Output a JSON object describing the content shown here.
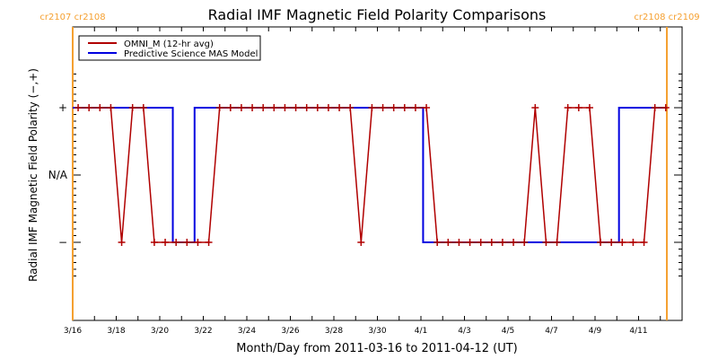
{
  "chart_data": {
    "type": "line",
    "title": "Radial IMF Magnetic Field Polarity Comparisons",
    "xlabel": "Month/Day from 2011-03-16 to 2011-04-12 (UT)",
    "ylabel": "Radial IMF Magnetic Field Polarity (−,+)",
    "x_unit": "days since 2011-03-16 00:00 UT",
    "xlim": [
      0,
      28
    ],
    "ylim": [
      -1.5,
      1.5
    ],
    "x_tick_values": [
      0,
      2,
      4,
      6,
      8,
      10,
      12,
      14,
      16,
      18,
      20,
      22,
      24,
      26
    ],
    "x_tick_labels": [
      "3/16",
      "3/18",
      "3/20",
      "3/22",
      "3/24",
      "3/26",
      "3/28",
      "3/30",
      "4/1",
      "4/3",
      "4/5",
      "4/7",
      "4/9",
      "4/11"
    ],
    "y_tick_values": [
      1,
      0,
      -1
    ],
    "y_tick_labels": [
      "+",
      "N/A",
      "−"
    ],
    "carrington_markers": [
      {
        "x": 0,
        "label_left": "cr2107",
        "label_right": "cr2108",
        "color": "#f5a030"
      },
      {
        "x": 27.3,
        "label_left": "cr2108",
        "label_right": "cr2109",
        "color": "#f5a030"
      }
    ],
    "legend": {
      "position": "top-left",
      "entries": [
        {
          "name": "OMNI_M (12-hr avg)",
          "color": "#b00000"
        },
        {
          "name": "Predictive Science MAS Model",
          "color": "#0000e0"
        }
      ]
    },
    "series": [
      {
        "name": "OMNI_M (12-hr avg)",
        "color": "#b00000",
        "x_start": 0.25,
        "x_step": 0.5,
        "values": [
          1,
          1,
          1,
          1,
          -1,
          1,
          1,
          -1,
          -1,
          -1,
          -1,
          -1,
          -1,
          1,
          1,
          1,
          1,
          1,
          1,
          1,
          1,
          1,
          1,
          1,
          1,
          1,
          -1,
          1,
          1,
          1,
          1,
          1,
          1,
          -1,
          -1,
          -1,
          -1,
          -1,
          -1,
          -1,
          -1,
          -1,
          1,
          -1,
          -1,
          1,
          1,
          1,
          -1,
          -1,
          -1,
          -1,
          -1,
          1,
          1
        ]
      },
      {
        "name": "Predictive Science MAS Model",
        "color": "#0000e0",
        "segments": [
          {
            "from": 0,
            "to": 4.6,
            "value": 1
          },
          {
            "from": 4.6,
            "to": 5.6,
            "value": -1
          },
          {
            "from": 5.6,
            "to": 16.1,
            "value": 1
          },
          {
            "from": 16.1,
            "to": 25.1,
            "value": -1
          },
          {
            "from": 25.1,
            "to": 27.3,
            "value": 1
          }
        ]
      }
    ]
  }
}
